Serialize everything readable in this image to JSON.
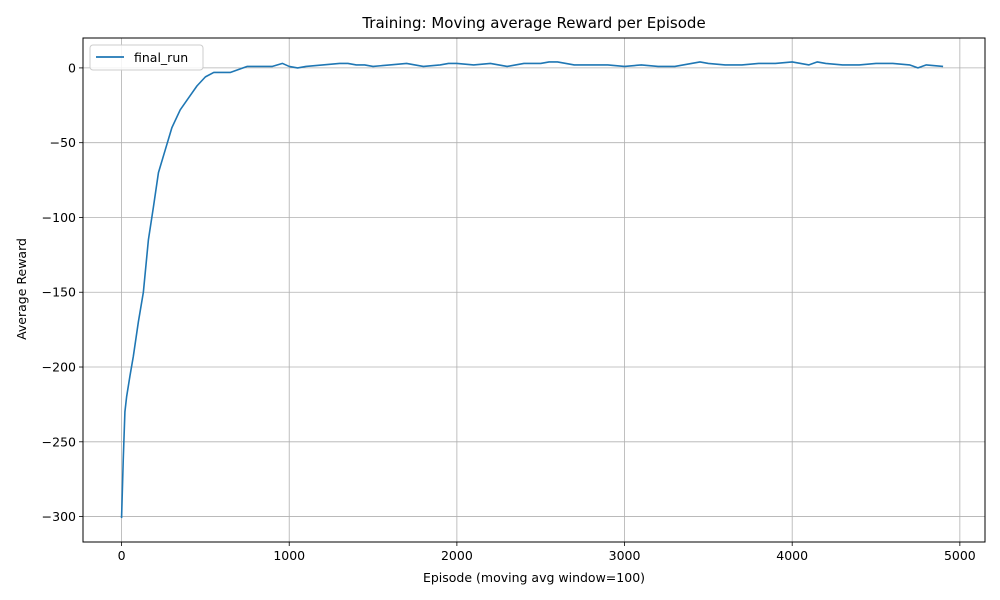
{
  "chart_data": {
    "type": "line",
    "title": "Training: Moving average Reward per Episode",
    "xlabel": "Episode (moving avg window=100)",
    "ylabel": "Average Reward",
    "xlim": [
      -230,
      5150
    ],
    "ylim": [
      -317,
      20
    ],
    "xticks": [
      0,
      1000,
      2000,
      3000,
      4000,
      5000
    ],
    "xtick_labels": [
      "0",
      "1000",
      "2000",
      "3000",
      "4000",
      "5000"
    ],
    "yticks": [
      0,
      -50,
      -100,
      -150,
      -200,
      -250,
      -300
    ],
    "ytick_labels": [
      "0",
      "−50",
      "−100",
      "−150",
      "−200",
      "−250",
      "−300"
    ],
    "grid": true,
    "legend": "upper-left",
    "series": [
      {
        "name": "final_run",
        "color": "#1f77b4",
        "x": [
          0,
          10,
          20,
          30,
          50,
          70,
          100,
          130,
          160,
          190,
          220,
          260,
          300,
          350,
          400,
          450,
          500,
          550,
          600,
          650,
          700,
          750,
          800,
          900,
          960,
          1000,
          1050,
          1100,
          1200,
          1300,
          1350,
          1400,
          1450,
          1500,
          1600,
          1700,
          1800,
          1900,
          1950,
          2000,
          2100,
          2200,
          2300,
          2350,
          2400,
          2500,
          2550,
          2600,
          2650,
          2700,
          2800,
          2900,
          3000,
          3100,
          3200,
          3300,
          3400,
          3450,
          3500,
          3600,
          3700,
          3800,
          3900,
          4000,
          4050,
          4100,
          4150,
          4200,
          4300,
          4400,
          4500,
          4600,
          4700,
          4750,
          4800,
          4900
        ],
        "y": [
          -301,
          -262,
          -230,
          -220,
          -206,
          -193,
          -170,
          -150,
          -115,
          -93,
          -70,
          -55,
          -40,
          -28,
          -20,
          -12,
          -6,
          -3,
          -3,
          -3,
          -1,
          1,
          1,
          1,
          3,
          1,
          0,
          1,
          2,
          3,
          3,
          2,
          2,
          1,
          2,
          3,
          1,
          2,
          3,
          3,
          2,
          3,
          1,
          2,
          3,
          3,
          4,
          4,
          3,
          2,
          2,
          2,
          1,
          2,
          1,
          1,
          3,
          4,
          3,
          2,
          2,
          3,
          3,
          4,
          3,
          2,
          4,
          3,
          2,
          2,
          3,
          3,
          2,
          0,
          2,
          1
        ]
      }
    ]
  }
}
